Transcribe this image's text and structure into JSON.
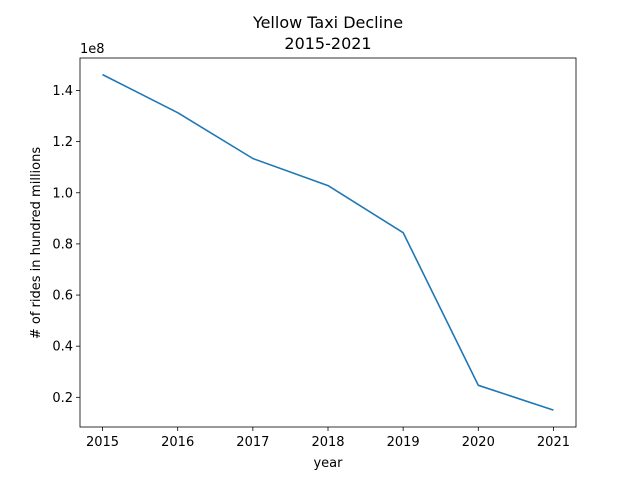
{
  "chart_data": {
    "type": "line",
    "title": "Yellow Taxi Decline",
    "subtitle": "2015-2021",
    "xlabel": "year",
    "ylabel": "# of rides in hundred millions",
    "y_offset_label": "1e8",
    "x": [
      2015,
      2016,
      2017,
      2018,
      2019,
      2020,
      2021
    ],
    "x_tick_labels": [
      "2015",
      "2016",
      "2017",
      "2018",
      "2019",
      "2020",
      "2021"
    ],
    "y_tick_values": [
      0.2,
      0.4,
      0.6,
      0.8,
      1.0,
      1.2,
      1.4
    ],
    "y_tick_labels": [
      "0.2",
      "0.4",
      "0.6",
      "0.8",
      "1.0",
      "1.2",
      "1.4"
    ],
    "series": [
      {
        "values": [
          1.462,
          1.313,
          1.134,
          1.028,
          0.844,
          0.247,
          0.15
        ],
        "color": "#1f77b4"
      }
    ],
    "xlim": [
      2014.7,
      2021.3
    ],
    "ylim": [
      0.084,
      1.527
    ],
    "grid": false,
    "legend": "none"
  }
}
